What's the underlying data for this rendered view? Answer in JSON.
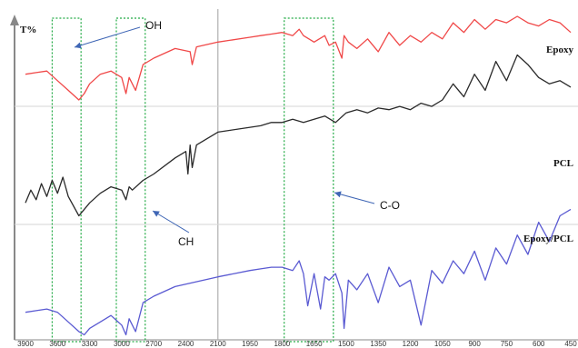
{
  "chart_data": {
    "type": "line",
    "title": "",
    "ylabel": "T%",
    "xlabel": "",
    "x_reversed": true,
    "xlim": [
      3900,
      450
    ],
    "x_ticks": [
      "3900",
      "3600",
      "3300",
      "3000",
      "2700",
      "2400",
      "2100",
      "1950",
      "1800",
      "1650",
      "1500",
      "1350",
      "1200",
      "1050",
      "900",
      "750",
      "600",
      "450"
    ],
    "axis_break": "2100",
    "grid": false,
    "colors": {
      "Epoxy": "#f04848",
      "PCL": "#2a2a2a",
      "Epoxy/PCL": "#5a5ad2",
      "annotation_box": "#22aa44",
      "annotation_arrow": "#3f66b5",
      "axes": "#888888"
    },
    "series": [
      {
        "name": "Epoxy",
        "x": [
          3900,
          3800,
          3700,
          3600,
          3500,
          3400,
          3350,
          3300,
          3200,
          3100,
          3000,
          2960,
          2930,
          2870,
          2800,
          2700,
          2500,
          2360,
          2340,
          2300,
          2100,
          1950,
          1900,
          1850,
          1800,
          1750,
          1720,
          1700,
          1650,
          1600,
          1580,
          1550,
          1520,
          1510,
          1490,
          1450,
          1400,
          1350,
          1300,
          1250,
          1200,
          1150,
          1100,
          1050,
          1000,
          950,
          900,
          850,
          800,
          750,
          700,
          650,
          600,
          550,
          500,
          450
        ],
        "y": [
          82,
          82.5,
          83,
          80,
          77,
          74,
          76,
          79,
          82,
          83,
          81,
          76,
          81,
          77,
          85,
          87,
          90,
          89,
          85,
          90.5,
          92,
          93.5,
          94,
          94.5,
          95,
          94,
          96,
          94,
          92,
          94,
          91,
          92,
          87,
          94,
          92,
          90,
          93,
          89,
          95,
          91,
          94,
          92,
          95,
          93,
          98,
          95,
          99,
          96,
          99,
          98,
          100,
          98,
          97,
          99,
          98,
          95
        ]
      },
      {
        "name": "PCL",
        "x": [
          3900,
          3850,
          3800,
          3750,
          3700,
          3650,
          3600,
          3550,
          3500,
          3400,
          3350,
          3300,
          3200,
          3100,
          3000,
          2960,
          2930,
          2900,
          2800,
          2700,
          2500,
          2400,
          2380,
          2360,
          2340,
          2300,
          2100,
          1950,
          1900,
          1850,
          1800,
          1750,
          1700,
          1650,
          1600,
          1550,
          1500,
          1450,
          1400,
          1350,
          1300,
          1250,
          1200,
          1150,
          1100,
          1050,
          1000,
          950,
          900,
          850,
          800,
          750,
          700,
          650,
          600,
          550,
          500,
          450
        ],
        "y": [
          42,
          46,
          43,
          48,
          44,
          49,
          45,
          50,
          44,
          38,
          40,
          42,
          45,
          47,
          46,
          43,
          47,
          46,
          49,
          51,
          56,
          58,
          51,
          60,
          53,
          60,
          64,
          65.5,
          66,
          67,
          67,
          68,
          67,
          68,
          69,
          67,
          70,
          71,
          70,
          71.5,
          71,
          72,
          71,
          73,
          72,
          74,
          79,
          75,
          82,
          77,
          86,
          80,
          88,
          85,
          81,
          79,
          80,
          78
        ]
      },
      {
        "name": "Epoxy/PCL",
        "x": [
          3900,
          3800,
          3700,
          3600,
          3500,
          3400,
          3350,
          3300,
          3200,
          3100,
          3000,
          2960,
          2930,
          2870,
          2800,
          2700,
          2500,
          2100,
          1950,
          1900,
          1850,
          1800,
          1750,
          1720,
          1700,
          1680,
          1650,
          1620,
          1600,
          1580,
          1550,
          1520,
          1510,
          1490,
          1450,
          1400,
          1350,
          1300,
          1250,
          1200,
          1150,
          1100,
          1050,
          1000,
          950,
          900,
          850,
          800,
          750,
          700,
          650,
          600,
          550,
          500,
          450
        ],
        "y": [
          8,
          8.5,
          9,
          8,
          5,
          2,
          1,
          3,
          5,
          7,
          4,
          1,
          6,
          2,
          11,
          13,
          16,
          19,
          21,
          21.5,
          22,
          22,
          21,
          24,
          20,
          10,
          20,
          9,
          19,
          18,
          20,
          14,
          3,
          18,
          15,
          20,
          11,
          22,
          16,
          18,
          4,
          21,
          17,
          24,
          20,
          27,
          18,
          28,
          23,
          32,
          26,
          36,
          30,
          38,
          40
        ]
      }
    ],
    "annotations": [
      {
        "label": "OH",
        "x_range": [
          3650,
          3380
        ]
      },
      {
        "label": "CH",
        "x_range": [
          3050,
          2780
        ]
      },
      {
        "label": "C-O",
        "x_range": [
          1790,
          1560
        ]
      }
    ]
  }
}
